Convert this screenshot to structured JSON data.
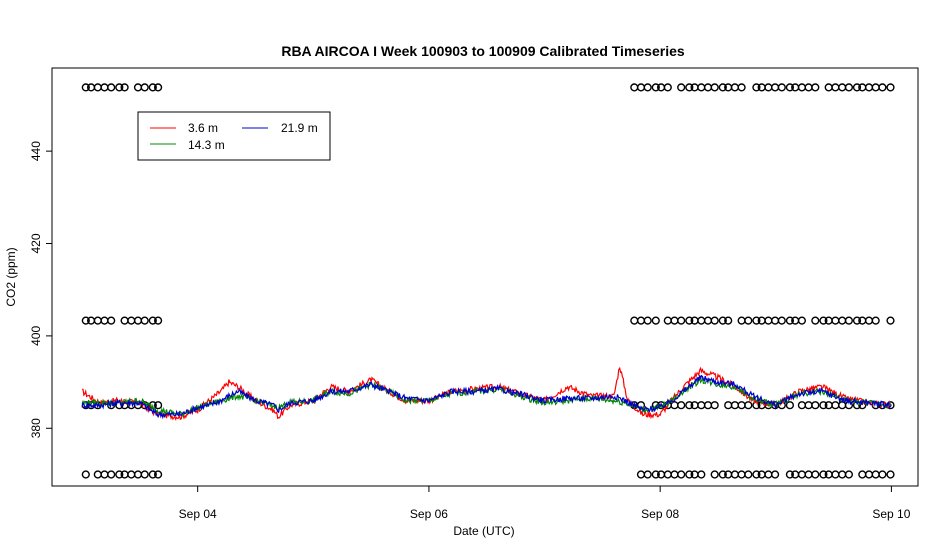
{
  "chart_data": {
    "type": "line",
    "title": "RBA AIRCOA I  Week 100903 to 100909  Calibrated Timeseries",
    "xlabel": "Date (UTC)",
    "ylabel": "CO2 (ppm)",
    "x_ticks": [
      {
        "value": 4.0,
        "label": "Sep 04"
      },
      {
        "value": 6.0,
        "label": "Sep 06"
      },
      {
        "value": 8.0,
        "label": "Sep 08"
      },
      {
        "value": 10.0,
        "label": "Sep 10"
      }
    ],
    "y_ticks": [
      380,
      400,
      420,
      440
    ],
    "xlim": [
      2.74,
      10.23
    ],
    "ylim": [
      367.5,
      458.0
    ],
    "legend_position": "top-left",
    "series": [
      {
        "name": "3.6 m",
        "color": "#ff0000",
        "x": [
          3.0,
          3.15,
          3.3,
          3.5,
          3.65,
          3.85,
          4.0,
          4.1,
          4.2,
          4.27,
          4.35,
          4.5,
          4.65,
          4.7,
          4.8,
          5.0,
          5.15,
          5.3,
          5.5,
          5.65,
          5.8,
          6.0,
          6.2,
          6.4,
          6.6,
          6.85,
          7.0,
          7.2,
          7.4,
          7.6,
          7.65,
          7.72,
          7.85,
          8.0,
          8.1,
          8.2,
          8.35,
          8.5,
          8.65,
          8.8,
          9.0,
          9.2,
          9.4,
          9.6,
          9.8,
          10.0
        ],
        "y": [
          388,
          385.5,
          386,
          385.5,
          383,
          382.5,
          384,
          386,
          388,
          390,
          389,
          386,
          384,
          382.5,
          385,
          386,
          389,
          388,
          390.5,
          388,
          386,
          386,
          388,
          388.5,
          389,
          387,
          386,
          389,
          387,
          387,
          393.5,
          386,
          383,
          383,
          386,
          389,
          392.5,
          391,
          389,
          386,
          385,
          388,
          389,
          386.5,
          385.5,
          385
        ]
      },
      {
        "name": "21.9 m",
        "color": "#0000cc",
        "x": [
          3.0,
          3.15,
          3.3,
          3.5,
          3.65,
          3.85,
          4.0,
          4.1,
          4.2,
          4.27,
          4.35,
          4.5,
          4.65,
          4.7,
          4.8,
          5.0,
          5.15,
          5.3,
          5.5,
          5.65,
          5.8,
          6.0,
          6.2,
          6.4,
          6.6,
          6.85,
          7.0,
          7.2,
          7.4,
          7.6,
          7.7,
          7.85,
          8.0,
          8.1,
          8.2,
          8.35,
          8.5,
          8.65,
          8.8,
          9.0,
          9.2,
          9.4,
          9.6,
          9.8,
          10.0
        ],
        "y": [
          385,
          385,
          385.5,
          385.5,
          383,
          383,
          384.5,
          385,
          386,
          387,
          388,
          386,
          385,
          384,
          385.5,
          386,
          388,
          388,
          389.5,
          388,
          386.5,
          386,
          388,
          388,
          388.5,
          387,
          386,
          386.5,
          386.5,
          387,
          386,
          384,
          384.5,
          386,
          388,
          391,
          390,
          389.5,
          387,
          385,
          387.5,
          388,
          386,
          385.5,
          385
        ]
      },
      {
        "name": "14.3 m",
        "color": "#008800",
        "x": [
          3.0,
          3.3,
          3.5,
          3.65,
          3.85,
          4.0,
          4.2,
          4.35,
          4.5,
          4.7,
          4.8,
          5.0,
          5.15,
          5.3,
          5.5,
          5.65,
          5.8,
          6.0,
          6.2,
          6.4,
          6.6,
          6.85,
          7.0,
          7.2,
          7.4,
          7.6,
          7.7,
          7.85,
          8.0,
          8.1,
          8.2,
          8.35,
          8.5,
          8.65,
          8.8,
          9.0,
          9.2,
          9.4,
          9.6,
          9.8,
          10.0
        ],
        "y": [
          385.5,
          385.5,
          386,
          384,
          383,
          384.5,
          386,
          387,
          386,
          384.5,
          385.5,
          386,
          388,
          387.5,
          389.5,
          388,
          386,
          386,
          387.5,
          388,
          388.5,
          386.5,
          385.5,
          386,
          386.5,
          386,
          385.5,
          384,
          384.5,
          386,
          388,
          390.5,
          389.5,
          389,
          386.5,
          385,
          387.5,
          388,
          386,
          385.5,
          385
        ]
      }
    ],
    "calibration_markers": {
      "marker": "open-circle",
      "levels": [
        453.8,
        403.3,
        385.0,
        370.0
      ],
      "gap_start": 3.68,
      "gap_end": 7.75,
      "x_start": 3.0,
      "x_end": 10.0
    }
  }
}
